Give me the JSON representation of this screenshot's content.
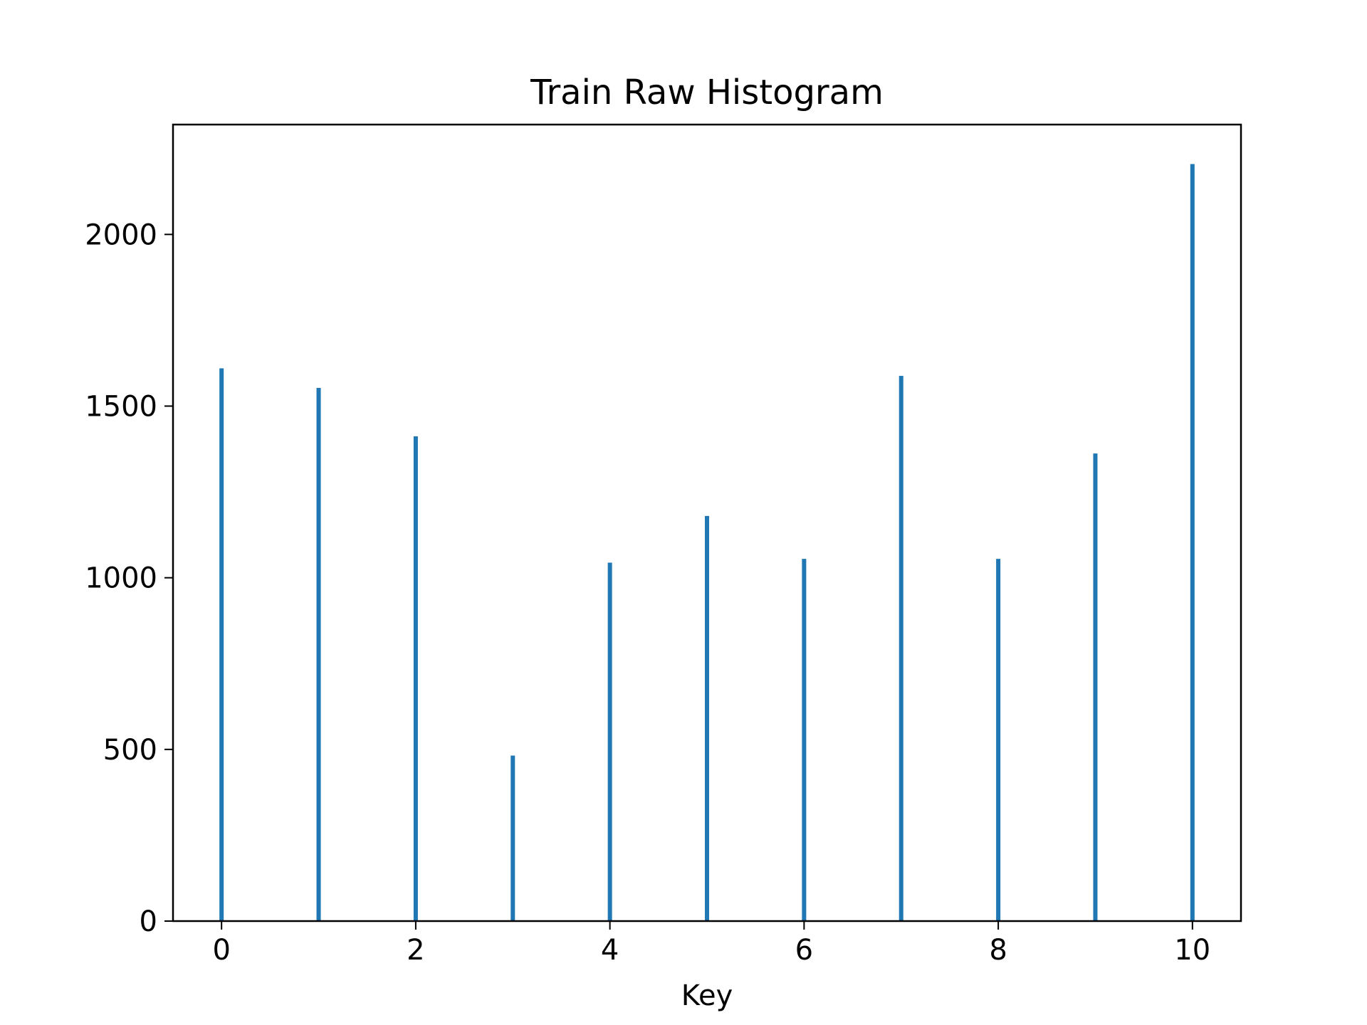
{
  "chart_data": {
    "type": "bar",
    "title": "Train Raw Histogram",
    "xlabel": "Key",
    "ylabel": "",
    "x": [
      0,
      1,
      2,
      3,
      4,
      5,
      6,
      7,
      8,
      9,
      10
    ],
    "values": [
      1610,
      1553,
      1412,
      482,
      1044,
      1180,
      1055,
      1588,
      1055,
      1362,
      2205
    ],
    "xlim": [
      -0.5,
      10.5
    ],
    "ylim": [
      0,
      2320
    ],
    "xticks": [
      0,
      2,
      4,
      6,
      8,
      10
    ],
    "xtick_labels": [
      "0",
      "2",
      "4",
      "6",
      "8",
      "10"
    ],
    "yticks": [
      0,
      500,
      1000,
      1500,
      2000
    ],
    "ytick_labels": [
      "0",
      "500",
      "1000",
      "1500",
      "2000"
    ],
    "bar_color": "#1f77b4",
    "grid": false,
    "legend": "none"
  }
}
